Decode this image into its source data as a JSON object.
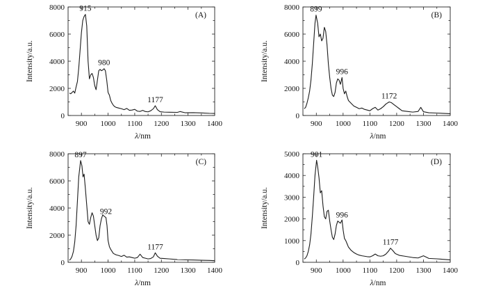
{
  "chart_data": [
    {
      "type": "line",
      "panel_label": "(A)",
      "xlabel": "λ/nm",
      "ylabel": "Intensity/a.u.",
      "xlim": [
        850,
        1400
      ],
      "ylim": [
        0,
        8000
      ],
      "xticks": [
        900,
        1000,
        1100,
        1200,
        1300,
        1400
      ],
      "yticks": [
        0,
        2000,
        4000,
        6000,
        8000
      ],
      "peak_labels": [
        {
          "text": "915",
          "x": 915,
          "y": 7450
        },
        {
          "text": "980",
          "x": 985,
          "y": 3450
        },
        {
          "text": "1177",
          "x": 1177,
          "y": 720
        }
      ],
      "x": [
        855,
        860,
        865,
        870,
        875,
        880,
        885,
        890,
        895,
        900,
        905,
        910,
        915,
        920,
        925,
        930,
        935,
        940,
        945,
        950,
        955,
        960,
        965,
        970,
        975,
        980,
        985,
        990,
        995,
        1000,
        1005,
        1010,
        1015,
        1020,
        1025,
        1030,
        1040,
        1050,
        1060,
        1070,
        1080,
        1090,
        1100,
        1110,
        1120,
        1130,
        1140,
        1150,
        1160,
        1170,
        1177,
        1185,
        1195,
        1210,
        1230,
        1260,
        1270,
        1290,
        1320,
        1350,
        1380,
        1400
      ],
      "y": [
        1650,
        1600,
        1700,
        1800,
        1650,
        2100,
        2500,
        3500,
        4800,
        6100,
        7000,
        7300,
        7450,
        6600,
        4000,
        2700,
        3000,
        3100,
        2800,
        2200,
        1900,
        2600,
        3300,
        3400,
        3300,
        3350,
        3450,
        3300,
        2600,
        1700,
        1500,
        1100,
        900,
        750,
        650,
        600,
        550,
        500,
        430,
        520,
        380,
        400,
        450,
        320,
        300,
        380,
        290,
        270,
        350,
        500,
        720,
        430,
        280,
        250,
        240,
        230,
        290,
        200,
        210,
        190,
        160,
        150
      ]
    },
    {
      "type": "line",
      "panel_label": "(B)",
      "xlabel": "λ/nm",
      "ylabel": "Intensity/a.u.",
      "xlim": [
        850,
        1400
      ],
      "ylim": [
        0,
        8000
      ],
      "xticks": [
        900,
        1000,
        1100,
        1200,
        1300,
        1400
      ],
      "yticks": [
        0,
        2000,
        4000,
        6000,
        8000
      ],
      "peak_labels": [
        {
          "text": "899",
          "x": 899,
          "y": 7400
        },
        {
          "text": "996",
          "x": 996,
          "y": 2800
        },
        {
          "text": "1172",
          "x": 1172,
          "y": 1000
        }
      ],
      "x": [
        855,
        860,
        865,
        870,
        875,
        880,
        885,
        890,
        895,
        899,
        905,
        910,
        915,
        920,
        925,
        930,
        935,
        940,
        945,
        950,
        955,
        960,
        965,
        970,
        975,
        980,
        985,
        990,
        996,
        1000,
        1005,
        1010,
        1015,
        1020,
        1030,
        1040,
        1050,
        1060,
        1070,
        1080,
        1090,
        1100,
        1110,
        1120,
        1130,
        1140,
        1150,
        1160,
        1172,
        1180,
        1190,
        1200,
        1210,
        1220,
        1240,
        1260,
        1280,
        1290,
        1300,
        1320,
        1350,
        1380,
        1400
      ],
      "y": [
        500,
        600,
        900,
        1300,
        1800,
        2600,
        3800,
        5300,
        6800,
        7400,
        6800,
        5800,
        6000,
        5500,
        5700,
        6500,
        6200,
        5200,
        3800,
        2800,
        2000,
        1500,
        1400,
        1700,
        2400,
        2700,
        2600,
        2300,
        2800,
        2000,
        1600,
        1800,
        1400,
        1100,
        900,
        700,
        600,
        500,
        550,
        450,
        400,
        350,
        500,
        600,
        400,
        500,
        650,
        850,
        1000,
        950,
        800,
        650,
        500,
        350,
        300,
        250,
        300,
        600,
        280,
        200,
        180,
        150,
        130
      ]
    },
    {
      "type": "line",
      "panel_label": "(C)",
      "xlabel": "λ/nm",
      "ylabel": "Intensity/a.u.",
      "xlim": [
        850,
        1400
      ],
      "ylim": [
        0,
        8000
      ],
      "xticks": [
        900,
        1000,
        1100,
        1200,
        1300,
        1400
      ],
      "yticks": [
        0,
        2000,
        4000,
        6000,
        8000
      ],
      "peak_labels": [
        {
          "text": "897",
          "x": 897,
          "y": 7500
        },
        {
          "text": "992",
          "x": 992,
          "y": 3300
        },
        {
          "text": "1177",
          "x": 1177,
          "y": 700
        }
      ],
      "x": [
        855,
        860,
        865,
        870,
        875,
        880,
        885,
        890,
        897,
        902,
        906,
        910,
        915,
        920,
        925,
        930,
        935,
        940,
        945,
        950,
        955,
        960,
        965,
        970,
        975,
        980,
        985,
        992,
        996,
        1000,
        1005,
        1010,
        1015,
        1020,
        1030,
        1040,
        1050,
        1060,
        1070,
        1080,
        1090,
        1100,
        1110,
        1120,
        1130,
        1140,
        1150,
        1160,
        1170,
        1177,
        1185,
        1195,
        1210,
        1230,
        1260,
        1290,
        1320,
        1350,
        1380,
        1400
      ],
      "y": [
        150,
        250,
        450,
        800,
        1500,
        2700,
        4500,
        6300,
        7500,
        7100,
        6300,
        6500,
        5400,
        4200,
        3000,
        2800,
        3300,
        3650,
        3400,
        2700,
        2000,
        1600,
        1800,
        2700,
        3200,
        3500,
        3400,
        3300,
        2700,
        1600,
        1150,
        950,
        800,
        650,
        550,
        500,
        430,
        520,
        380,
        400,
        350,
        300,
        350,
        600,
        350,
        300,
        250,
        280,
        400,
        700,
        450,
        300,
        280,
        250,
        200,
        180,
        170,
        150,
        140,
        120
      ]
    },
    {
      "type": "line",
      "panel_label": "(D)",
      "xlabel": "λ/nm",
      "ylabel": "Intensity/a.u.",
      "xlim": [
        850,
        1400
      ],
      "ylim": [
        0,
        5000
      ],
      "xticks": [
        900,
        1000,
        1100,
        1200,
        1300,
        1400
      ],
      "yticks": [
        0,
        1000,
        2000,
        3000,
        4000,
        5000
      ],
      "peak_labels": [
        {
          "text": "901",
          "x": 901,
          "y": 4700
        },
        {
          "text": "996",
          "x": 996,
          "y": 1900
        },
        {
          "text": "1177",
          "x": 1177,
          "y": 650
        }
      ],
      "x": [
        855,
        860,
        865,
        870,
        875,
        880,
        885,
        890,
        895,
        901,
        905,
        910,
        915,
        920,
        925,
        930,
        935,
        940,
        945,
        950,
        955,
        960,
        965,
        970,
        975,
        980,
        985,
        990,
        996,
        1000,
        1005,
        1010,
        1015,
        1020,
        1030,
        1040,
        1050,
        1060,
        1070,
        1080,
        1090,
        1100,
        1110,
        1120,
        1130,
        1140,
        1150,
        1160,
        1170,
        1177,
        1185,
        1195,
        1210,
        1230,
        1260,
        1280,
        1300,
        1320,
        1350,
        1380,
        1400
      ],
      "y": [
        150,
        200,
        300,
        500,
        800,
        1300,
        2100,
        3000,
        4000,
        4700,
        4400,
        3900,
        3200,
        3300,
        2600,
        2100,
        2000,
        2350,
        2400,
        1900,
        1500,
        1150,
        1050,
        1300,
        1700,
        1900,
        1850,
        1800,
        1950,
        1500,
        1100,
        1000,
        850,
        700,
        550,
        450,
        380,
        330,
        300,
        280,
        260,
        250,
        300,
        380,
        300,
        280,
        300,
        380,
        520,
        650,
        550,
        400,
        320,
        280,
        220,
        200,
        300,
        180,
        160,
        130,
        110
      ]
    }
  ]
}
